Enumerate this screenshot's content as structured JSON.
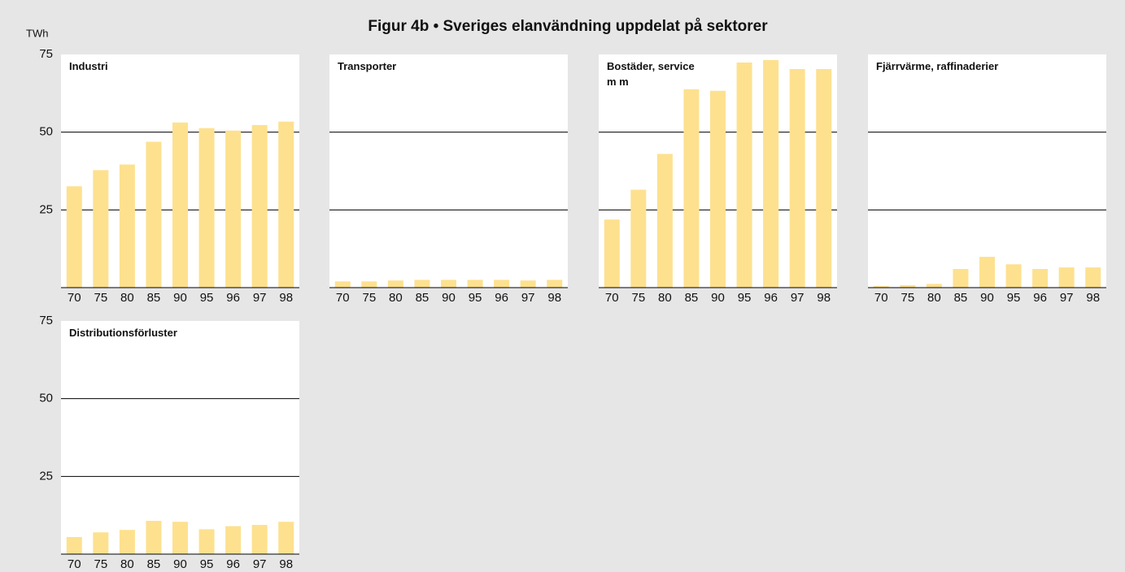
{
  "title": "Figur 4b • Sveriges elanvändning uppdelat på sektorer",
  "unit": "TWh",
  "categories": [
    "70",
    "75",
    "80",
    "85",
    "90",
    "95",
    "96",
    "97",
    "98"
  ],
  "ylim": [
    0,
    75
  ],
  "yticks": [
    25,
    50,
    75
  ],
  "chart_data": [
    {
      "type": "bar",
      "title": "Industri",
      "color": "#fde18f",
      "values": [
        32.6,
        37.8,
        39.6,
        46.9,
        53.1,
        51.3,
        50.5,
        52.3,
        53.4
      ]
    },
    {
      "type": "bar",
      "title": "Transporter",
      "color": "#fde18f",
      "values": [
        2.0,
        2.0,
        2.3,
        2.5,
        2.5,
        2.5,
        2.5,
        2.3,
        2.5
      ]
    },
    {
      "type": "bar",
      "title": "Bostäder, service\nm m",
      "color": "#fde18f",
      "values": [
        21.9,
        31.5,
        43.0,
        63.8,
        63.3,
        72.4,
        73.2,
        70.3,
        70.3
      ]
    },
    {
      "type": "bar",
      "title": "Fjärrvärme, raffinaderier",
      "color": "#fde18f",
      "values": [
        0.5,
        0.8,
        1.2,
        6.0,
        9.9,
        7.5,
        6.0,
        6.5,
        6.5
      ]
    },
    {
      "type": "bar",
      "title": "Distributionsförluster",
      "color": "#fde18f",
      "values": [
        5.5,
        7.0,
        7.8,
        10.7,
        10.4,
        8.0,
        9.0,
        9.4,
        10.4
      ]
    }
  ]
}
